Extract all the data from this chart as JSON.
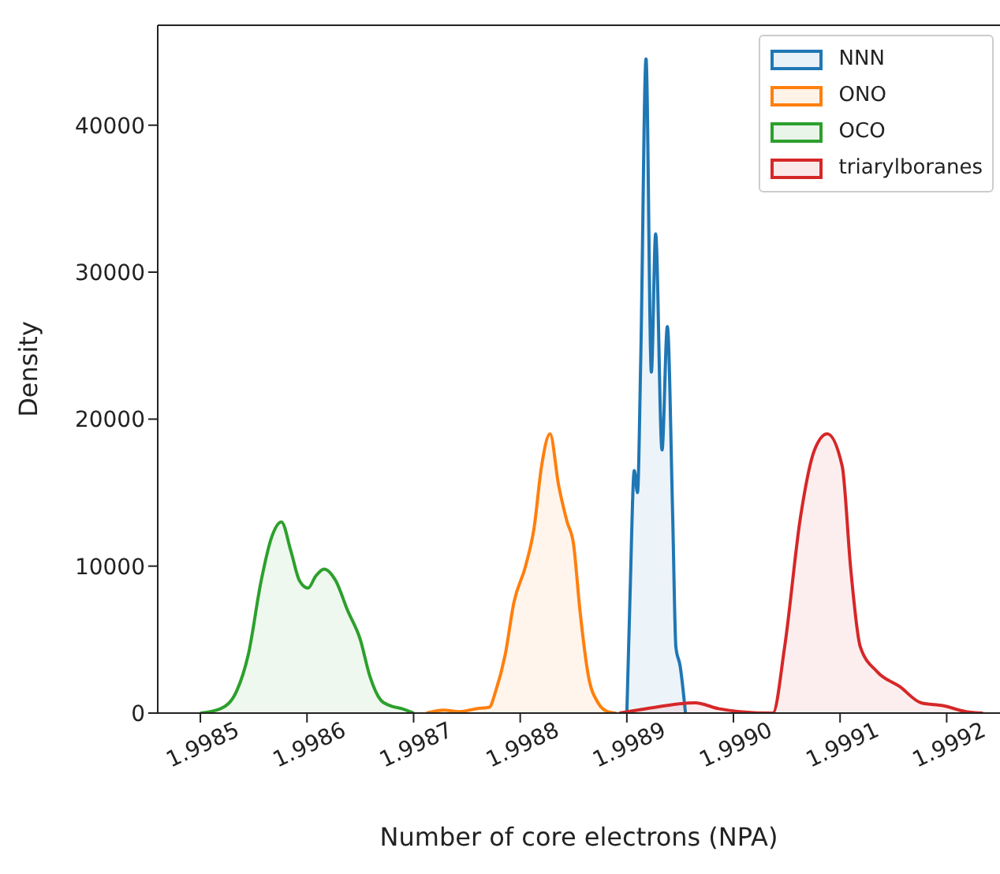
{
  "chart_data": {
    "type": "area",
    "xlabel": "Number of core electrons (NPA)",
    "ylabel": "Density",
    "xlim": [
      1.99846,
      1.99925
    ],
    "xticks": [
      1.9985,
      1.9986,
      1.9987,
      1.9988,
      1.9989,
      {
        "value": 1.999,
        "label": "1.9990"
      },
      1.9991,
      1.9992
    ],
    "ylim": [
      0,
      46800
    ],
    "yticks": [
      0,
      10000,
      20000,
      30000,
      40000
    ],
    "legend": "top right",
    "grid": false,
    "series": [
      {
        "name": "NNN",
        "color": "#1f77b4",
        "x": [
          1.9989,
          1.998903,
          1.998907,
          1.99891,
          1.998913,
          1.998918,
          1.998923,
          1.998927,
          1.998933,
          1.998938,
          1.998943,
          1.998946,
          1.99895,
          1.998955
        ],
        "values": [
          0,
          8000,
          16500,
          15000,
          23900,
          44500,
          23200,
          32600,
          17900,
          26300,
          13400,
          4500,
          3200,
          0
        ]
      },
      {
        "name": "ONO",
        "color": "#ff7f0e",
        "x": [
          1.998712,
          1.998728,
          1.998743,
          1.998759,
          1.998771,
          1.998777,
          1.998786,
          1.998794,
          1.998805,
          1.998813,
          1.99882,
          1.998828,
          1.998836,
          1.998844,
          1.99885,
          1.998856,
          1.998864,
          1.998873,
          1.998882,
          1.99889
        ],
        "values": [
          0,
          200,
          100,
          300,
          400,
          1500,
          4000,
          7500,
          10000,
          12600,
          16800,
          19000,
          15500,
          13000,
          11500,
          7000,
          2500,
          700,
          100,
          0
        ]
      },
      {
        "name": "OCO",
        "color": "#2ca02c",
        "x": [
          1.9985,
          1.998519,
          1.998534,
          1.998545,
          1.998557,
          1.998567,
          1.998576,
          1.998585,
          1.998593,
          1.998601,
          1.998608,
          1.998616,
          1.998627,
          1.998638,
          1.99865,
          1.998659,
          1.998669,
          1.998678,
          1.998689,
          1.9987
        ],
        "values": [
          0,
          300,
          1500,
          4000,
          9000,
          12000,
          13000,
          11000,
          9000,
          8500,
          9300,
          9800,
          9000,
          7000,
          5000,
          2500,
          900,
          500,
          300,
          0
        ]
      },
      {
        "name": "triarylboranes",
        "color": "#d62728",
        "x": [
          1.998893,
          1.998918,
          1.998964,
          1.998986,
          1.999006,
          1.999037,
          1.999048,
          1.999063,
          1.999076,
          1.999088,
          1.999102,
          1.99911,
          1.999119,
          1.999135,
          1.999156,
          1.999176,
          1.999197,
          1.999218,
          1.999234
        ],
        "values": [
          0,
          300,
          700,
          300,
          100,
          0,
          4500,
          13400,
          17900,
          19000,
          16800,
          9800,
          4500,
          2800,
          1800,
          700,
          500,
          100,
          0
        ]
      }
    ]
  }
}
